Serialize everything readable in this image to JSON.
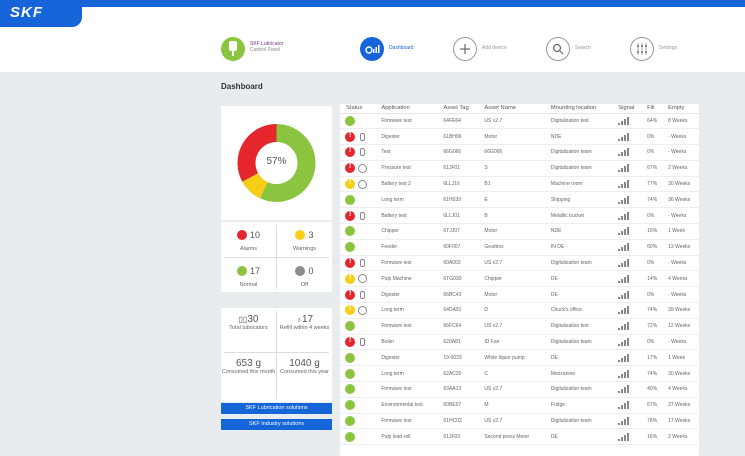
{
  "brand": {
    "logo": "SKF"
  },
  "app": {
    "title": "SKF Lubricator",
    "subtitle": "Control Panel"
  },
  "nav": {
    "dashboard": "Dashboard",
    "add": "Add device",
    "search": "Search",
    "settings": "Settings"
  },
  "page_title": "Dashboard",
  "donut": {
    "percent_label": "57%",
    "colors": {
      "green": "#8bc53f",
      "red": "#e5262d",
      "yellow": "#f7cd16"
    },
    "segments": [
      {
        "label": "Normal",
        "value": 57
      },
      {
        "label": "Warnings",
        "value": 10
      },
      {
        "label": "Alarms",
        "value": 33
      }
    ]
  },
  "counts": {
    "alarms": {
      "num": "10",
      "label": "Alarms"
    },
    "warnings": {
      "num": "3",
      "label": "Warnings"
    },
    "normal": {
      "num": "17",
      "label": "Normal"
    },
    "off": {
      "num": "0",
      "label": "Off"
    }
  },
  "stats": {
    "total": {
      "num": "30",
      "label": "Total lubricators"
    },
    "refill": {
      "num": "17",
      "label": "Refill within 4 weeks"
    },
    "month": {
      "num": "653 g",
      "label": "Consumed this month"
    },
    "year": {
      "num": "1040 g",
      "label": "Consumed this year"
    }
  },
  "buttons": {
    "lube": "SKF Lubrication solutions",
    "industry": "SKF Industry solutions"
  },
  "table": {
    "headers": [
      "Status",
      "Application",
      "Asset Tag",
      "Asset Name",
      "Mounting location",
      "Signal",
      "Fill",
      "Empty"
    ],
    "rows": [
      {
        "status": "green",
        "icon": "",
        "app": "Firmware test",
        "tag": "64FE64",
        "name": "US v2.7",
        "loc": "Digitalization test",
        "signal": 4,
        "fill": "64%",
        "empty": "8 Weeks"
      },
      {
        "status": "red",
        "icon": "cart",
        "app": "Digester",
        "tag": "61BH96",
        "name": "Motor",
        "loc": "NDE",
        "signal": 4,
        "fill": "0%",
        "empty": "- Weeks"
      },
      {
        "status": "red",
        "icon": "cart",
        "app": "Test",
        "tag": "66G066",
        "name": "66G066",
        "loc": "Digitalization team",
        "signal": 4,
        "fill": "0%",
        "empty": "- Weeks"
      },
      {
        "status": "red",
        "icon": "clock",
        "app": "Pressure test",
        "tag": "61JF01",
        "name": "S",
        "loc": "Digitalization team",
        "signal": 4,
        "fill": "67%",
        "empty": "2 Weeks"
      },
      {
        "status": "yellow",
        "icon": "clock",
        "app": "Battery test 2",
        "tag": "6LLJ16",
        "name": "B1",
        "loc": "Machine room",
        "signal": 4,
        "fill": "77%",
        "empty": "30 Weeks"
      },
      {
        "status": "green",
        "icon": "",
        "app": "Long term",
        "tag": "61H039",
        "name": "E",
        "loc": "Shipping",
        "signal": 4,
        "fill": "74%",
        "empty": "36 Weeks"
      },
      {
        "status": "red",
        "icon": "cart",
        "app": "Battery test",
        "tag": "6LLJ01",
        "name": "B",
        "loc": "Metallic bucket",
        "signal": 4,
        "fill": "0%",
        "empty": "- Weeks"
      },
      {
        "status": "green",
        "icon": "",
        "app": "Chipper",
        "tag": "6TJJ07",
        "name": "Motor",
        "loc": "NDE",
        "signal": 4,
        "fill": "16%",
        "empty": "1 Week"
      },
      {
        "status": "green",
        "icon": "",
        "app": "Feeder",
        "tag": "60F007",
        "name": "Gearbox",
        "loc": "IN DE",
        "signal": 4,
        "fill": "60%",
        "empty": "13 Weeks"
      },
      {
        "status": "red",
        "icon": "cart",
        "app": "Firmware test",
        "tag": "60A003",
        "name": "US v2.7",
        "loc": "Digitalization team",
        "signal": 4,
        "fill": "0%",
        "empty": "- Weeks"
      },
      {
        "status": "yellow",
        "icon": "clock",
        "app": "Pulp Machine",
        "tag": "6TG030",
        "name": "Chipper",
        "loc": "DE",
        "signal": 4,
        "fill": "14%",
        "empty": "4 Weeks"
      },
      {
        "status": "red",
        "icon": "cart",
        "app": "Digester",
        "tag": "66BC43",
        "name": "Motor",
        "loc": "DE",
        "signal": 4,
        "fill": "0%",
        "empty": "- Weeks"
      },
      {
        "status": "yellow",
        "icon": "clock",
        "app": "Long term",
        "tag": "64DA91",
        "name": "D",
        "loc": "Chuck's office",
        "signal": 4,
        "fill": "74%",
        "empty": "39 Weeks"
      },
      {
        "status": "green",
        "icon": "",
        "app": "Firmware test",
        "tag": "66FC64",
        "name": "US v2.7",
        "loc": "Digitalization test",
        "signal": 4,
        "fill": "72%",
        "empty": "12 Weeks"
      },
      {
        "status": "red",
        "icon": "cart",
        "app": "Boiler",
        "tag": "620A81",
        "name": "ID Fan",
        "loc": "Digitalization team",
        "signal": 4,
        "fill": "0%",
        "empty": "- Weeks"
      },
      {
        "status": "green",
        "icon": "",
        "app": "Digester",
        "tag": "19-0029",
        "name": "White liquor pump",
        "loc": "DE",
        "signal": 4,
        "fill": "17%",
        "empty": "1 Week"
      },
      {
        "status": "green",
        "icon": "",
        "app": "Long term",
        "tag": "62AC20",
        "name": "C",
        "loc": "Mezzanine",
        "signal": 4,
        "fill": "74%",
        "empty": "30 Weeks"
      },
      {
        "status": "green",
        "icon": "",
        "app": "Firmware test",
        "tag": "63AA13",
        "name": "US v2.7",
        "loc": "Digitalization team",
        "signal": 4,
        "fill": "40%",
        "empty": "4 Weeks"
      },
      {
        "status": "green",
        "icon": "",
        "app": "Environmental test",
        "tag": "60BE07",
        "name": "M",
        "loc": "Fridge",
        "signal": 4,
        "fill": "67%",
        "empty": "27 Weeks"
      },
      {
        "status": "green",
        "icon": "",
        "app": "Firmware test",
        "tag": "61HC02",
        "name": "US v2.7",
        "loc": "Digitalization team",
        "signal": 4,
        "fill": "78%",
        "empty": "17 Weeks"
      },
      {
        "status": "green",
        "icon": "",
        "app": "Pulp lead-roll",
        "tag": "61JF03",
        "name": "Second press Motor",
        "loc": "DE",
        "signal": 4,
        "fill": "16%",
        "empty": "2 Weeks"
      }
    ]
  }
}
